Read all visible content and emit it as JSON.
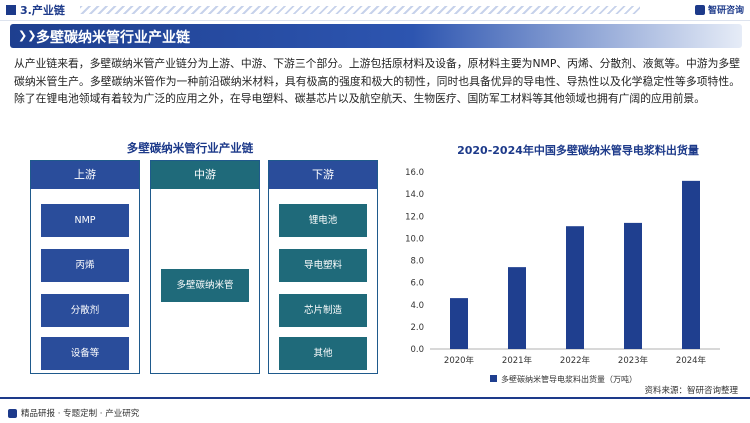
{
  "header": {
    "section": "3.产业链",
    "logo": "智研咨询",
    "title": "多壁碳纳米管行业产业链"
  },
  "intro": "从产业链来看，多壁碳纳米管产业链分为上游、中游、下游三个部分。上游包括原材料及设备，原材料主要为NMP、丙烯、分散剂、液氮等。中游为多壁碳纳米管生产。多壁碳纳米管作为一种前沿碳纳米材料，具有极高的强度和极大的韧性，同时也具备优异的导电性、导热性以及化学稳定性等多项特性。除了在锂电池领域有着较为广泛的应用之外，在导电塑料、碳基芯片以及航空航天、生物医疗、国防军工材料等其他领域也拥有广阔的应用前景。",
  "chain": {
    "title": "多壁碳纳米管行业产业链",
    "upstream": {
      "label": "上游",
      "items": [
        "NMP",
        "丙烯",
        "分散剂",
        "设备等"
      ]
    },
    "midstream": {
      "label": "中游",
      "items": [
        "多壁碳纳米管"
      ]
    },
    "downstream": {
      "label": "下游",
      "items": [
        "锂电池",
        "导电塑料",
        "芯片制造",
        "其他"
      ]
    }
  },
  "chart_data": {
    "type": "bar",
    "title": "2020-2024年中国多壁碳纳米管导电浆料出货量",
    "categories": [
      "2020年",
      "2021年",
      "2022年",
      "2023年",
      "2024年"
    ],
    "series": [
      {
        "name": "多壁碳纳米管导电浆料出货量（万吨）",
        "values": [
          4.6,
          7.4,
          11.1,
          11.4,
          15.2
        ]
      }
    ],
    "ylim": [
      0,
      16
    ],
    "yticks": [
      "0.0",
      "2.0",
      "4.0",
      "6.0",
      "8.0",
      "10.0",
      "12.0",
      "14.0",
      "16.0"
    ],
    "grid": false,
    "legend": "bottom",
    "color": "#1f3f8f"
  },
  "footer": {
    "left": "精品研报 · 专题定制 · 产业研究",
    "source": "资料来源：智研咨询整理"
  }
}
